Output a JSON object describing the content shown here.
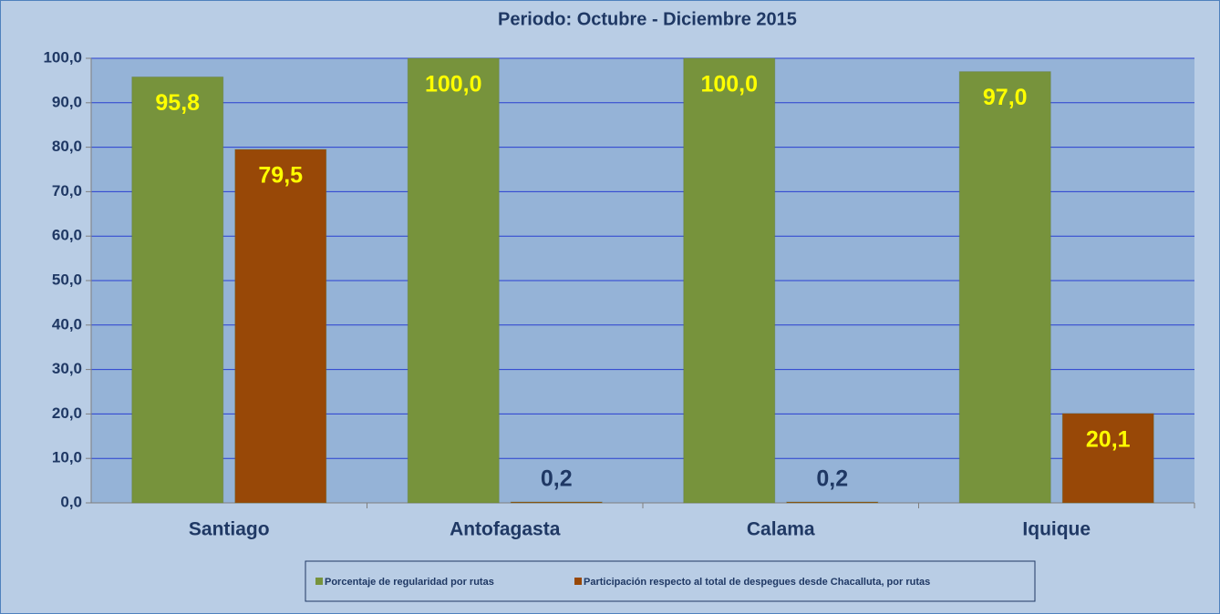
{
  "chart_data": {
    "type": "bar",
    "title": "Periodo:  Octubre - Diciembre  2015",
    "categories": [
      "Santiago",
      "Antofagasta",
      "Calama",
      "Iquique"
    ],
    "series": [
      {
        "name": "Porcentaje de regularidad por rutas",
        "color": "#77933c",
        "values": [
          95.8,
          100.0,
          100.0,
          97.0
        ],
        "value_labels": [
          "95,8",
          "100,0",
          "100,0",
          "97,0"
        ]
      },
      {
        "name": "Participación respecto al total de despegues desde Chacalluta, por rutas",
        "color": "#984807",
        "values": [
          79.5,
          0.2,
          0.2,
          20.1
        ],
        "value_labels": [
          "79,5",
          "0,2",
          "0,2",
          "20,1"
        ]
      }
    ],
    "ylim": [
      0,
      100
    ],
    "yticks": [
      {
        "value": 0,
        "label": "0,0"
      },
      {
        "value": 10,
        "label": "10,0"
      },
      {
        "value": 20,
        "label": "20,0"
      },
      {
        "value": 30,
        "label": "30,0"
      },
      {
        "value": 40,
        "label": "40,0"
      },
      {
        "value": 50,
        "label": "50,0"
      },
      {
        "value": 60,
        "label": "60,0"
      },
      {
        "value": 70,
        "label": "70,0"
      },
      {
        "value": 80,
        "label": "80,0"
      },
      {
        "value": 90,
        "label": "90,0"
      },
      {
        "value": 100,
        "label": "100,0"
      }
    ],
    "grid": true,
    "legend": "bottom"
  }
}
